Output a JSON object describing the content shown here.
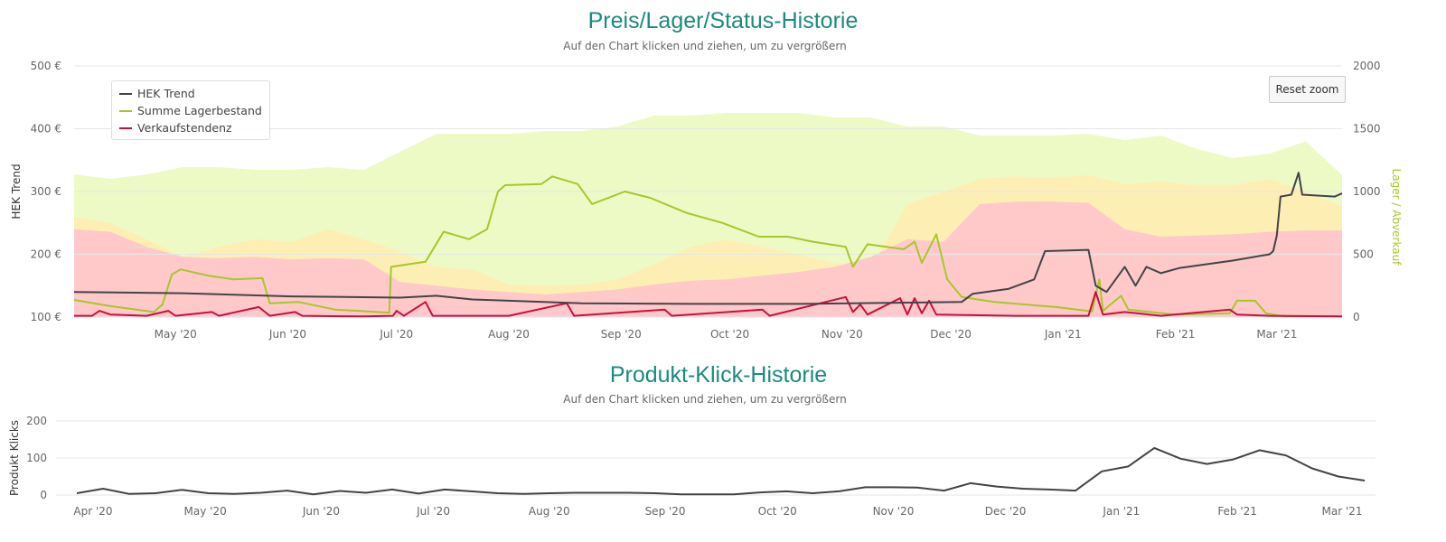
{
  "chart_data": [
    {
      "type": "line",
      "title": "Preis/Lager/Status-Historie",
      "subtitle": "Auf den Chart klicken und ziehen, um zu vergrößern",
      "start_date": "2020-04-03",
      "x_unit": "days since start_date",
      "x_range": [
        0,
        350
      ],
      "ylabel_left": "HEK Trend",
      "ylabel_right": "Lager / Abverkauf",
      "ylim_left": [
        100,
        500
      ],
      "ylim_right": [
        0,
        2000
      ],
      "yticks_left": [
        "100 €",
        "200 €",
        "300 €",
        "400 €",
        "500 €"
      ],
      "yticks_right": [
        "0",
        "500",
        "1000",
        "1500",
        "2000"
      ],
      "xticks": [
        {
          "label": "May '20",
          "date": "2020-05-01"
        },
        {
          "label": "Jun '20",
          "date": "2020-06-01"
        },
        {
          "label": "Jul '20",
          "date": "2020-07-01"
        },
        {
          "label": "Aug '20",
          "date": "2020-08-01"
        },
        {
          "label": "Sep '20",
          "date": "2020-09-01"
        },
        {
          "label": "Oct '20",
          "date": "2020-10-01"
        },
        {
          "label": "Nov '20",
          "date": "2020-11-01"
        },
        {
          "label": "Dec '20",
          "date": "2020-12-01"
        },
        {
          "label": "Jan '21",
          "date": "2021-01-01"
        },
        {
          "label": "Feb '21",
          "date": "2021-02-01"
        },
        {
          "label": "Mar '21",
          "date": "2021-03-01"
        }
      ],
      "grid": true,
      "legend_position": "top-left",
      "reset_zoom_label": "Reset zoom",
      "area_days_step": 10,
      "areas": [
        {
          "name": "status-green",
          "color": "#eefac6",
          "values": [
            1137,
            1101,
            1137,
            1194,
            1194,
            1173,
            1173,
            1194,
            1173,
            1317,
            1460,
            1460,
            1460,
            1482,
            1482,
            1518,
            1604,
            1604,
            1626,
            1626,
            1626,
            1590,
            1590,
            1518,
            1518,
            1446,
            1446,
            1446,
            1460,
            1410,
            1446,
            1338,
            1266,
            1302,
            1400,
            1130
          ]
        },
        {
          "name": "status-yellow",
          "color": "#fdefb4",
          "values": [
            800,
            750,
            620,
            480,
            560,
            620,
            600,
            700,
            620,
            520,
            400,
            380,
            260,
            250,
            260,
            300,
            420,
            560,
            620,
            560,
            500,
            430,
            400,
            900,
            1000,
            1100,
            1120,
            1110,
            1130,
            1060,
            1080,
            1050,
            1050,
            1100,
            1000,
            880
          ]
        },
        {
          "name": "status-red",
          "color": "#ffc9c9",
          "values": [
            700,
            680,
            560,
            480,
            470,
            480,
            460,
            470,
            460,
            280,
            250,
            220,
            200,
            180,
            200,
            220,
            260,
            290,
            300,
            330,
            360,
            400,
            480,
            620,
            600,
            900,
            920,
            920,
            910,
            700,
            640,
            650,
            660,
            680,
            690,
            690
          ]
        }
      ],
      "series": [
        {
          "name": "HEK Trend",
          "axis": "left",
          "color": "#434348",
          "points": [
            [
              0,
              140
            ],
            [
              30,
              138
            ],
            [
              60,
              133
            ],
            [
              90,
              131
            ],
            [
              100,
              134
            ],
            [
              110,
              128
            ],
            [
              120,
              126
            ],
            [
              140,
              122
            ],
            [
              170,
              121
            ],
            [
              200,
              121
            ],
            [
              245,
              124
            ],
            [
              248,
              137
            ],
            [
              258,
              145
            ],
            [
              265,
              160
            ],
            [
              268,
              205
            ],
            [
              280,
              207
            ],
            [
              282,
              150
            ],
            [
              285,
              140
            ],
            [
              290,
              180
            ],
            [
              293,
              150
            ],
            [
              296,
              180
            ],
            [
              300,
              170
            ],
            [
              305,
              178
            ],
            [
              320,
              190
            ],
            [
              330,
              200
            ],
            [
              331,
              205
            ],
            [
              332,
              230
            ],
            [
              333,
              292
            ],
            [
              336,
              295
            ],
            [
              338,
              330
            ],
            [
              339,
              295
            ],
            [
              348,
              292
            ],
            [
              350,
              297
            ]
          ]
        },
        {
          "name": "Summe Lagerbestand",
          "axis": "right",
          "color": "#a6c72a",
          "points": [
            [
              0,
              137
            ],
            [
              9.5,
              90
            ],
            [
              22,
              40
            ],
            [
              24.4,
              100
            ],
            [
              27,
              340
            ],
            [
              29.4,
              380
            ],
            [
              37,
              330
            ],
            [
              44,
              300
            ],
            [
              52,
              310
            ],
            [
              54,
              110
            ],
            [
              62,
              120
            ],
            [
              72,
              60
            ],
            [
              87,
              35
            ],
            [
              87.5,
              400
            ],
            [
              97,
              440
            ],
            [
              102,
              680
            ],
            [
              109,
              620
            ],
            [
              114,
              700
            ],
            [
              117,
              1000
            ],
            [
              119,
              1050
            ],
            [
              129,
              1060
            ],
            [
              132,
              1120
            ],
            [
              139,
              1060
            ],
            [
              143,
              900
            ],
            [
              152,
              1000
            ],
            [
              159,
              950
            ],
            [
              169,
              830
            ],
            [
              179,
              750
            ],
            [
              189,
              640
            ],
            [
              197,
              640
            ],
            [
              204,
              600
            ],
            [
              213,
              560
            ],
            [
              215,
              400
            ],
            [
              219,
              580
            ],
            [
              229,
              540
            ],
            [
              232,
              600
            ],
            [
              234,
              430
            ],
            [
              238,
              660
            ],
            [
              241,
              300
            ],
            [
              245,
              160
            ],
            [
              254,
              120
            ],
            [
              271,
              80
            ],
            [
              281,
              45
            ],
            [
              283,
              300
            ],
            [
              284,
              50
            ],
            [
              289,
              170
            ],
            [
              291,
              60
            ],
            [
              304,
              20
            ],
            [
              319,
              30
            ],
            [
              321,
              130
            ],
            [
              326,
              130
            ],
            [
              329,
              30
            ],
            [
              334,
              5
            ],
            [
              350,
              5
            ]
          ]
        },
        {
          "name": "Verkaufstendenz",
          "axis": "right",
          "color": "#c8103c",
          "points": [
            [
              0,
              10
            ],
            [
              5,
              10
            ],
            [
              7,
              50
            ],
            [
              10,
              20
            ],
            [
              20,
              10
            ],
            [
              26,
              50
            ],
            [
              28,
              10
            ],
            [
              38,
              40
            ],
            [
              40,
              10
            ],
            [
              51,
              80
            ],
            [
              54,
              10
            ],
            [
              61,
              40
            ],
            [
              63,
              10
            ],
            [
              80,
              5
            ],
            [
              88,
              10
            ],
            [
              89,
              50
            ],
            [
              91,
              10
            ],
            [
              97,
              120
            ],
            [
              99,
              10
            ],
            [
              120,
              10
            ],
            [
              136,
              110
            ],
            [
              138,
              10
            ],
            [
              163,
              60
            ],
            [
              165,
              10
            ],
            [
              190,
              60
            ],
            [
              192,
              10
            ],
            [
              213,
              160
            ],
            [
              215,
              40
            ],
            [
              217,
              100
            ],
            [
              219,
              20
            ],
            [
              228,
              150
            ],
            [
              230,
              20
            ],
            [
              232,
              150
            ],
            [
              234,
              30
            ],
            [
              236,
              130
            ],
            [
              238,
              20
            ],
            [
              260,
              10
            ],
            [
              280,
              10
            ],
            [
              282,
              200
            ],
            [
              284,
              20
            ],
            [
              290,
              40
            ],
            [
              300,
              10
            ],
            [
              319,
              60
            ],
            [
              321,
              20
            ],
            [
              330,
              10
            ],
            [
              350,
              5
            ]
          ]
        }
      ]
    },
    {
      "type": "line",
      "title": "Produkt-Klick-Historie",
      "subtitle": "Auf den Chart klicken und ziehen, um zu vergrößern",
      "start_date": "2020-03-27",
      "x_unit": "days since start_date",
      "x_range": [
        0,
        345
      ],
      "ylabel": "Produkt Klicks",
      "ylim": [
        0,
        200
      ],
      "yticks": [
        "0",
        "100",
        "200"
      ],
      "xticks": [
        {
          "label": "Apr '20",
          "date": "2020-04-01"
        },
        {
          "label": "May '20",
          "date": "2020-05-01"
        },
        {
          "label": "Jun '20",
          "date": "2020-06-01"
        },
        {
          "label": "Jul '20",
          "date": "2020-07-01"
        },
        {
          "label": "Aug '20",
          "date": "2020-08-01"
        },
        {
          "label": "Sep '20",
          "date": "2020-09-01"
        },
        {
          "label": "Oct '20",
          "date": "2020-10-01"
        },
        {
          "label": "Nov '20",
          "date": "2020-11-01"
        },
        {
          "label": "Dec '20",
          "date": "2020-12-01"
        },
        {
          "label": "Jan '21",
          "date": "2021-01-01"
        },
        {
          "label": "Feb '21",
          "date": "2021-02-01"
        },
        {
          "label": "Mar '21",
          "date": "2021-03-01"
        }
      ],
      "grid": true,
      "series": [
        {
          "name": "Produkt Klicks",
          "color": "#434348",
          "days_step": 7,
          "values": [
            5,
            17,
            3,
            5,
            14,
            5,
            3,
            6,
            12,
            2,
            11,
            6,
            15,
            4,
            15,
            10,
            5,
            3,
            5,
            6,
            6,
            6,
            5,
            2,
            2,
            2,
            7,
            10,
            5,
            10,
            21,
            21,
            20,
            12,
            32,
            23,
            17,
            15,
            12,
            64,
            77,
            127,
            98,
            84,
            96,
            121,
            107,
            72,
            50,
            39
          ]
        }
      ]
    }
  ]
}
